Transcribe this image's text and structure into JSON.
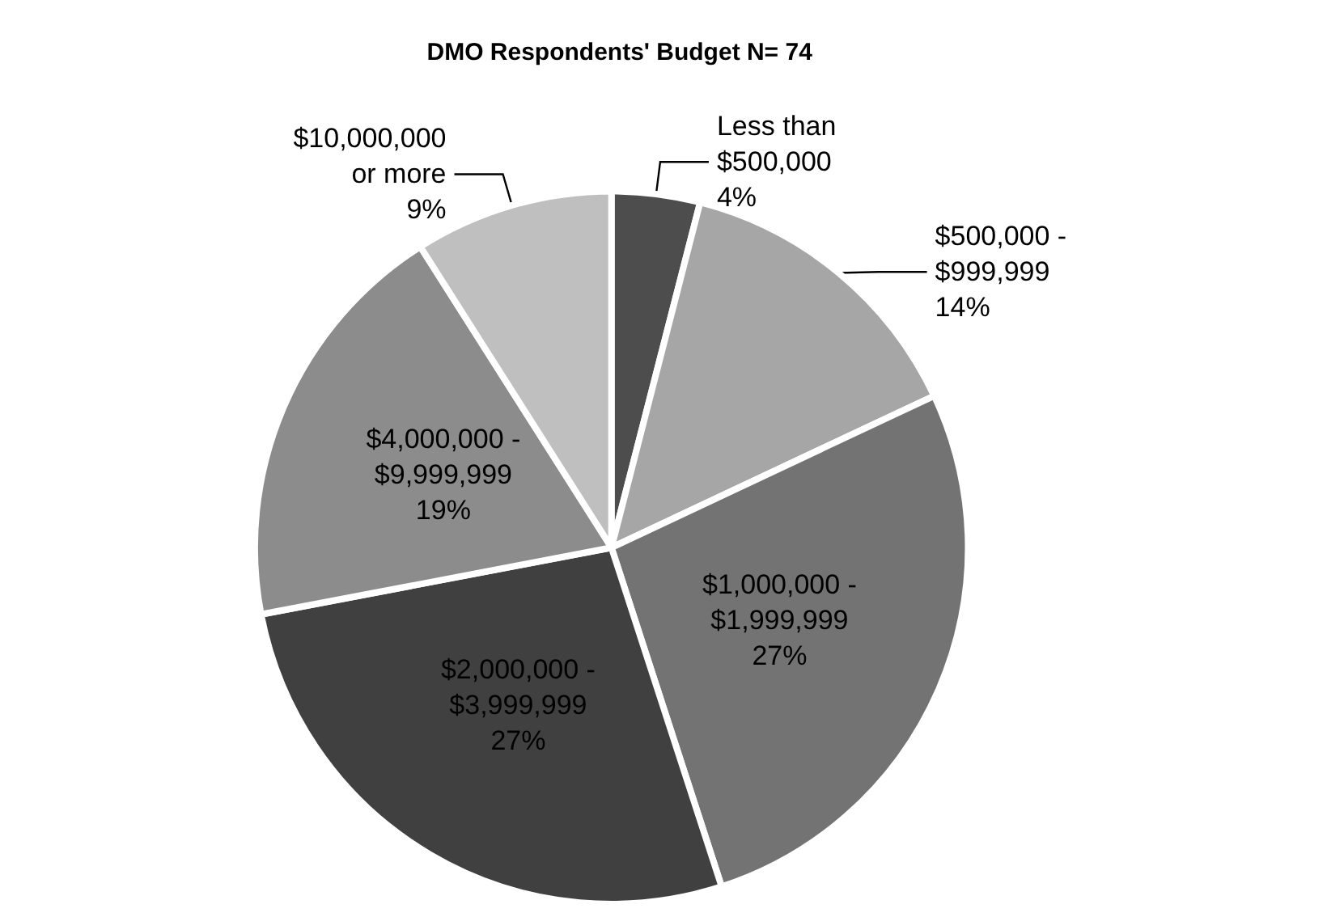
{
  "chart_data": {
    "type": "pie",
    "title": "DMO Respondents' Budget N= 74",
    "categories": [
      "Less than\n$500,000",
      "$500,000 -\n$999,999",
      "$1,000,000 -\n$1,999,999",
      "$2,000,000 -\n$3,999,999",
      "$4,000,000 -\n$9,999,999",
      "$10,000,000\nor more"
    ],
    "values": [
      4,
      14,
      27,
      27,
      19,
      9
    ],
    "colors": [
      "#4d4d4d",
      "#a6a6a6",
      "#737373",
      "#404040",
      "#8c8c8c",
      "#bfbfbf"
    ],
    "value_labels": [
      "4%",
      "14%",
      "27%",
      "27%",
      "19%",
      "9%"
    ],
    "legend": false
  }
}
